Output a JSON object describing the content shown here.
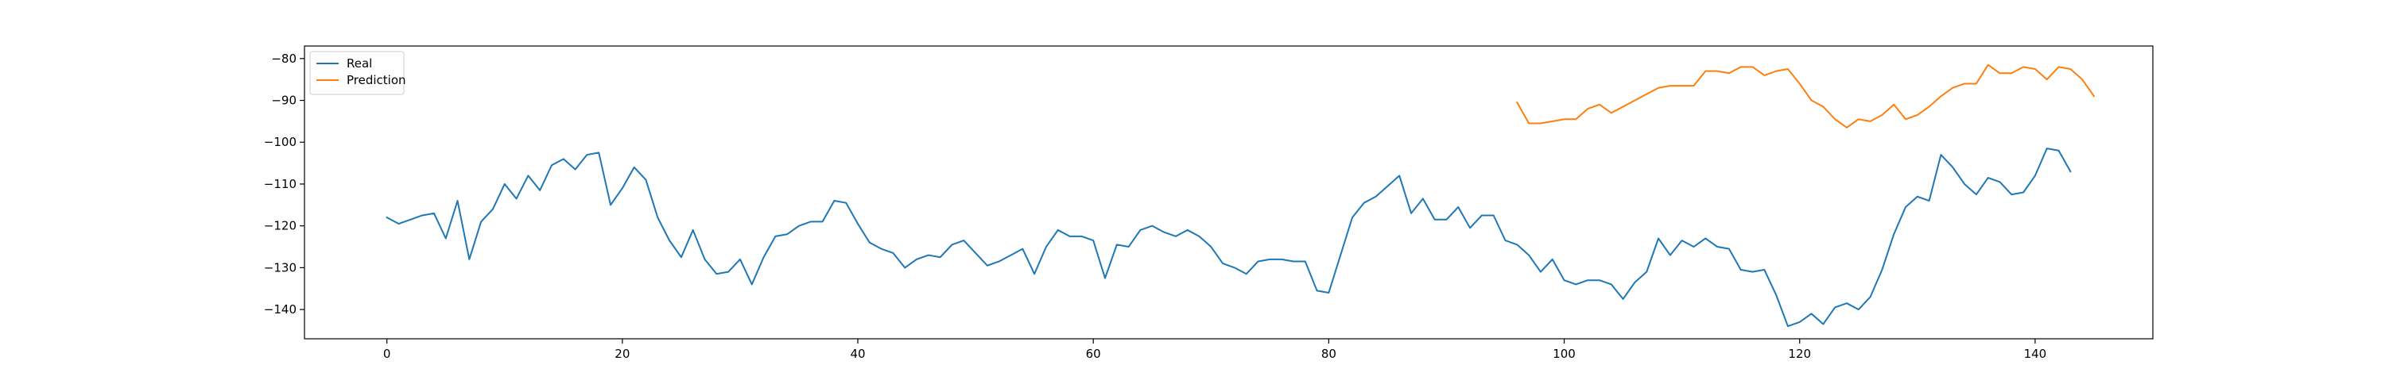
{
  "chart_data": {
    "type": "line",
    "title": "",
    "xlabel": "",
    "ylabel": "",
    "xlim": [
      -7,
      150
    ],
    "ylim": [
      -147,
      -77
    ],
    "xticks": [
      0,
      20,
      40,
      60,
      80,
      100,
      120,
      140
    ],
    "yticks": [
      -80,
      -90,
      -100,
      -110,
      -120,
      -130,
      -140
    ],
    "grid": false,
    "legend": {
      "position": "top-left"
    },
    "series": [
      {
        "name": "Real",
        "color": "#1f77b4",
        "x_start": 0,
        "values": [
          -118,
          -119.5,
          -118.5,
          -117.5,
          -117,
          -123,
          -114,
          -128,
          -119,
          -116,
          -110,
          -113.5,
          -108,
          -111.5,
          -105.5,
          -104,
          -106.5,
          -103,
          -102.5,
          -115,
          -111,
          -106,
          -109,
          -118,
          -123.5,
          -127.5,
          -121,
          -128,
          -131.5,
          -131,
          -128,
          -134,
          -127.5,
          -122.5,
          -122,
          -120,
          -119,
          -119,
          -114,
          -114.5,
          -119.5,
          -124,
          -125.5,
          -126.5,
          -130,
          -128,
          -127,
          -127.5,
          -124.5,
          -123.5,
          -126.5,
          -129.5,
          -128.5,
          -127,
          -125.5,
          -131.5,
          -125,
          -121,
          -122.5,
          -122.5,
          -123.5,
          -132.5,
          -124.5,
          -125,
          -121,
          -120,
          -121.5,
          -122.5,
          -121,
          -122.5,
          -125,
          -129,
          -130,
          -131.5,
          -128.5,
          -128,
          -128,
          -128.5,
          -128.5,
          -135.5,
          -136,
          -127,
          -118,
          -114.5,
          -113,
          -110.5,
          -108,
          -117,
          -113.5,
          -118.5,
          -118.5,
          -115.5,
          -120.5,
          -117.5,
          -117.5,
          -123.5,
          -124.5,
          -127,
          -131,
          -128,
          -133,
          -134,
          -133,
          -133,
          -134,
          -137.5,
          -133.5,
          -131,
          -123,
          -127,
          -123.5,
          -125,
          -123,
          -125,
          -125.5,
          -130.5,
          -131,
          -130.5,
          -136.5,
          -144,
          -143,
          -141,
          -143.5,
          -139.5,
          -138.5,
          -140,
          -137,
          -130.5,
          -122,
          -115.5,
          -113,
          -114,
          -103,
          -106,
          -110,
          -112.5,
          -108.5,
          -109.5,
          -112.5,
          -112,
          -108,
          -101.5,
          -102,
          -107
        ]
      },
      {
        "name": "Prediction",
        "color": "#ff7f0e",
        "x_start": 96,
        "values": [
          -90.5,
          -95.5,
          -95.5,
          -95,
          -94.5,
          -94.5,
          -92,
          -91,
          -93,
          -91.5,
          -90,
          -88.5,
          -87,
          -86.5,
          -86.5,
          -86.5,
          -83,
          -83,
          -83.5,
          -82,
          -82,
          -84,
          -83,
          -82.5,
          -86,
          -90,
          -91.5,
          -94.5,
          -96.5,
          -94.5,
          -95,
          -93.5,
          -91,
          -94.5,
          -93.5,
          -91.5,
          -89,
          -87,
          -86,
          -86,
          -81.5,
          -83.5,
          -83.5,
          -82,
          -82.5,
          -85,
          -82,
          -82.5,
          -85,
          -89
        ]
      }
    ]
  }
}
